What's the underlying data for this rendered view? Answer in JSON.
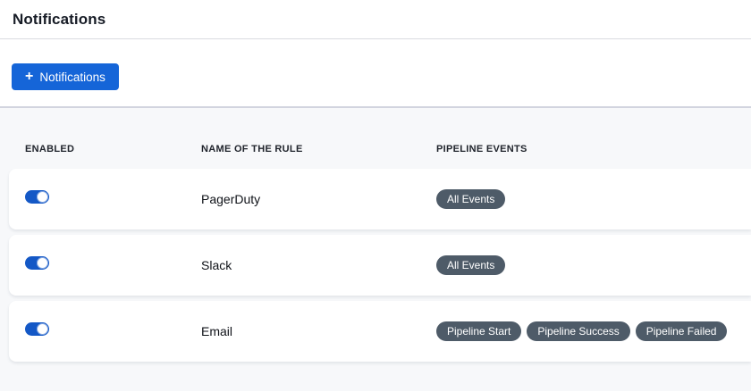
{
  "page": {
    "title": "Notifications"
  },
  "toolbar": {
    "add_button_label": "Notifications",
    "plus_icon": "+"
  },
  "table": {
    "columns": [
      {
        "key": "enabled",
        "label": "ENABLED"
      },
      {
        "key": "name",
        "label": "NAME OF THE RULE"
      },
      {
        "key": "events",
        "label": "PIPELINE EVENTS"
      }
    ],
    "rows": [
      {
        "enabled": true,
        "name": "PagerDuty",
        "events": [
          "All Events"
        ]
      },
      {
        "enabled": true,
        "name": "Slack",
        "events": [
          "All Events"
        ]
      },
      {
        "enabled": true,
        "name": "Email",
        "events": [
          "Pipeline Start",
          "Pipeline Success",
          "Pipeline Failed"
        ]
      }
    ]
  },
  "colors": {
    "primary_blue": "#1565d8",
    "toggle_blue": "#1458c6",
    "badge_bg": "#4e5b68",
    "table_bg": "#f7f8fa",
    "table_top_border": "#d2d4df",
    "divider": "#d9dbe0",
    "heading_text": "#171c26"
  }
}
